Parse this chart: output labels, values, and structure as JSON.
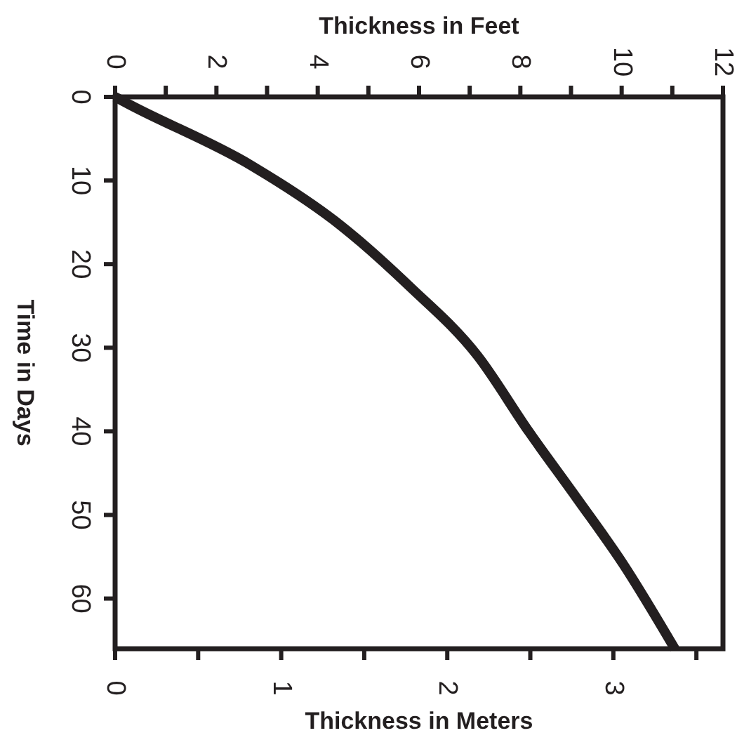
{
  "chart_data": {
    "type": "line",
    "xlabel": "Thickness in Meters",
    "x2label": "Thickness in Feet",
    "ylabel": "Time in Days",
    "xlim": [
      0,
      3.66
    ],
    "xticks": [
      0,
      {
        "value": 0.5,
        "label": null
      },
      1,
      {
        "value": 1.5,
        "label": null
      },
      2,
      {
        "value": 2.5,
        "label": null
      },
      3,
      {
        "value": 3.5,
        "label": null
      }
    ],
    "x2lim": [
      0,
      12
    ],
    "x2ticks": [
      0,
      {
        "value": 1,
        "label": null
      },
      2,
      {
        "value": 3,
        "label": null
      },
      4,
      {
        "value": 5,
        "label": null
      },
      6,
      {
        "value": 7,
        "label": null
      },
      8,
      {
        "value": 9,
        "label": null
      },
      10,
      {
        "value": 11,
        "label": null
      },
      12
    ],
    "ylim": [
      66,
      0
    ],
    "yticks": [
      0,
      10,
      20,
      30,
      40,
      50,
      60
    ],
    "grid": false,
    "marker": "none",
    "line_style": "solid",
    "series": [
      {
        "color": "#231f20",
        "x": [
          0,
          0.085,
          0.82,
          1.36,
          1.78,
          2.18,
          2.49,
          2.78,
          3.06,
          3.37
        ],
        "values": [
          0,
          0.9,
          8.2,
          15.4,
          22.8,
          30.9,
          40,
          48,
          55.9,
          66
        ]
      }
    ]
  }
}
